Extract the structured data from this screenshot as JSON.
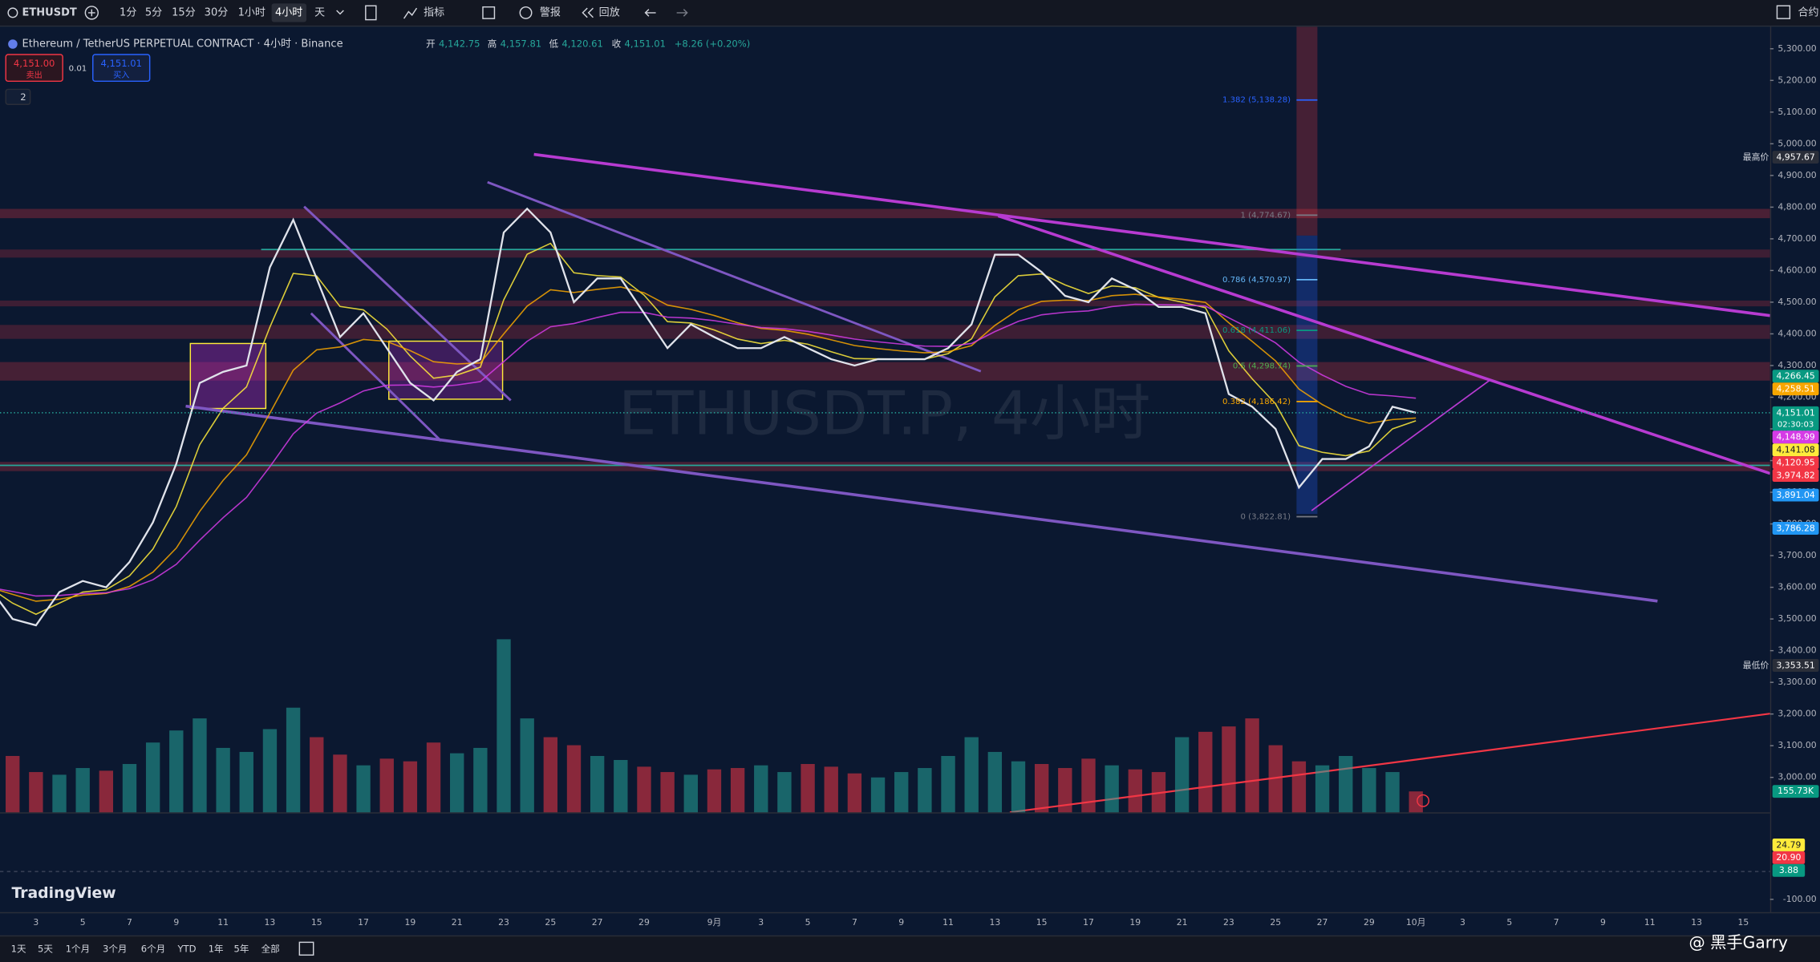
{
  "toolbar": {
    "symbol": "ETHUSDT",
    "intervals": [
      "1分",
      "5分",
      "15分",
      "30分",
      "1小时",
      "4小时",
      "天"
    ],
    "active_interval": "4小时",
    "indicators": "指标",
    "alert": "警报",
    "replay": "回放",
    "contract": "合约"
  },
  "legend": {
    "title": "Ethereum / TetherUS PERPETUAL CONTRACT · 4小时 · Binance",
    "open_label": "开",
    "open": "4,142.75",
    "high_label": "高",
    "high": "4,157.81",
    "low_label": "低",
    "low": "4,120.61",
    "close_label": "收",
    "close": "4,151.01",
    "change": "+8.26 (+0.20%)",
    "sell_price": "4,151.00",
    "sell": "卖出",
    "spread": "0.01",
    "buy_price": "4,151.01",
    "buy": "买入",
    "indicator_count": "2"
  },
  "watermark": "ETHUSDT.P, 4小时",
  "chart": {
    "closes": [
      3600,
      3500,
      3480,
      3585,
      3620,
      3600,
      3680,
      3805,
      3990,
      4245,
      4280,
      4300,
      4610,
      4760,
      4575,
      4390,
      4465,
      4355,
      4245,
      4190,
      4280,
      4320,
      4720,
      4795,
      4720,
      4500,
      4575,
      4575,
      4465,
      4355,
      4430,
      4390,
      4355,
      4355,
      4390,
      4355,
      4320,
      4300,
      4320,
      4320,
      4320,
      4355,
      4430,
      4650,
      4650,
      4595,
      4520,
      4500,
      4575,
      4540,
      4485,
      4485,
      4465,
      4210,
      4170,
      4100,
      3915,
      4005,
      4005,
      4045,
      4170,
      4151.01
    ],
    "volumes": [
      350,
      420,
      300,
      280,
      330,
      310,
      360,
      520,
      610,
      700,
      480,
      450,
      620,
      780,
      560,
      430,
      350,
      400,
      380,
      520,
      440,
      480,
      1290,
      700,
      560,
      500,
      420,
      390,
      340,
      300,
      280,
      320,
      330,
      350,
      300,
      360,
      340,
      290,
      260,
      300,
      330,
      420,
      560,
      450,
      380,
      360,
      330,
      400,
      350,
      320,
      300,
      560,
      600,
      640,
      700,
      500,
      380,
      350,
      420,
      330,
      300,
      155.73
    ],
    "ylim": [
      5373,
      2890
    ],
    "yticks": [
      {
        "value": 5300,
        "label": "5,300.00"
      },
      {
        "value": 5200,
        "label": "5,200.00"
      },
      {
        "value": 5100,
        "label": "5,100.00"
      },
      {
        "value": 5000,
        "label": "5,000.00"
      },
      {
        "value": 4900,
        "label": "4,900.00"
      },
      {
        "value": 4800,
        "label": "4,800.00"
      },
      {
        "value": 4700,
        "label": "4,700.00"
      },
      {
        "value": 4600,
        "label": "4,600.00"
      },
      {
        "value": 4500,
        "label": "4,500.00"
      },
      {
        "value": 4400,
        "label": "4,400.00"
      },
      {
        "value": 4300,
        "label": "4,300.00"
      },
      {
        "value": 4200,
        "label": "4,200.00"
      },
      {
        "value": 4100,
        "label": "4,100.00"
      },
      {
        "value": 4000,
        "label": "4,000.00"
      },
      {
        "value": 3900,
        "label": "3,900.00"
      },
      {
        "value": 3800,
        "label": "3,800.00"
      },
      {
        "value": 3700,
        "label": "3,700.00"
      },
      {
        "value": 3600,
        "label": "3,600.00"
      },
      {
        "value": 3500,
        "label": "3,500.00"
      },
      {
        "value": 3400,
        "label": "3,400.00"
      },
      {
        "value": 3300,
        "label": "3,300.00"
      },
      {
        "value": 3200,
        "label": "3,200.00"
      },
      {
        "value": 3100,
        "label": "3,100.00"
      },
      {
        "value": 3000,
        "label": "3,000.00"
      }
    ],
    "price_tags": [
      {
        "value": 4957.67,
        "label": "4,957.67",
        "color": "#2a2e39",
        "side_label": "最高价"
      },
      {
        "value": 4266.45,
        "label": "4,266.45",
        "color": "#089981"
      },
      {
        "value": 4258.51,
        "label": "4,258.51",
        "color": "#f7a600"
      },
      {
        "value": 4151.01,
        "label": "4,151.01",
        "color": "#089981",
        "sub_label": "02:30:03"
      },
      {
        "value": 4148.99,
        "label": "4,148.99",
        "color": "#d53be6"
      },
      {
        "value": 4141.08,
        "label": "4,141.08",
        "color": "#ffeb3b"
      },
      {
        "value": 4120.95,
        "label": "4,120.95",
        "color": "#f23645"
      },
      {
        "value": 3974.82,
        "label": "3,974.82",
        "color": "#f23645"
      },
      {
        "value": 3891.04,
        "label": "3,891.04",
        "color": "#2196f3"
      },
      {
        "value": 3786.28,
        "label": "3,786.28",
        "color": "#2196f3"
      },
      {
        "value": 3353.51,
        "label": "3,353.51",
        "color": "#2a2e39",
        "side_label": "最低价"
      }
    ],
    "volume_tag": {
      "value": 155.73,
      "label": "155.73K",
      "color": "#089981"
    },
    "fib_levels": [
      {
        "value": 5138.28,
        "label": "1.382 (5,138.28)",
        "color": "#2962ff"
      },
      {
        "value": 4774.67,
        "label": "1 (4,774.67)",
        "color": "#787b86"
      },
      {
        "value": 4570.97,
        "label": "0.786 (4,570.97)",
        "color": "#64b5f6"
      },
      {
        "value": 4411.06,
        "label": "0.618 (4,411.06)",
        "color": "#089981"
      },
      {
        "value": 4298.74,
        "label": "0.5 (4,298.74)",
        "color": "#4caf50"
      },
      {
        "value": 4186.42,
        "label": "0.382 (4,186.42)",
        "color": "#f7a600"
      },
      {
        "value": 3822.81,
        "label": "0 (3,822.81)",
        "color": "#787b86"
      }
    ],
    "macd_ticks": [
      {
        "value": -100,
        "label": "-100.00"
      }
    ],
    "macd_tags": [
      {
        "value": 24.79,
        "label": "24.79",
        "color": "#ffeb3b"
      },
      {
        "value": 20.9,
        "label": "20.90",
        "color": "#f23645"
      },
      {
        "value": 3.88,
        "label": "3.88",
        "color": "#089981"
      }
    ],
    "date_labels": [
      "3",
      "5",
      "7",
      "9",
      "11",
      "13",
      "15",
      "17",
      "19",
      "21",
      "23",
      "25",
      "27",
      "29",
      "9月",
      "3",
      "5",
      "7",
      "9",
      "11",
      "13",
      "15",
      "17",
      "19",
      "21",
      "23",
      "25",
      "27",
      "29",
      "10月",
      "3",
      "5",
      "7",
      "9",
      "11",
      "13",
      "15"
    ]
  },
  "bottom_bar": {
    "ranges": [
      "1天",
      "5天",
      "1个月",
      "3个月",
      "6个月",
      "YTD",
      "1年",
      "5年",
      "全部"
    ],
    "brand": "TradingView",
    "author": "@ 黑手Garry"
  }
}
